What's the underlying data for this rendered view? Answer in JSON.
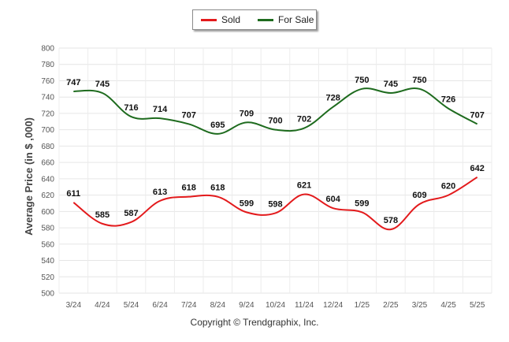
{
  "legend": {
    "sold_label": "Sold",
    "for_sale_label": "For Sale"
  },
  "footer": {
    "copyright": "Copyright © Trendgraphix, Inc."
  },
  "colors": {
    "sold": "#e31a1c",
    "for_sale": "#1e6b1e",
    "grid": "#e6e6e6"
  },
  "chart_data": {
    "type": "line",
    "ylabel": "Average Price (in $ ,000)",
    "ylim": [
      500,
      800
    ],
    "yticks": [
      500,
      520,
      540,
      560,
      580,
      600,
      620,
      640,
      660,
      680,
      700,
      720,
      740,
      760,
      780,
      800
    ],
    "categories": [
      "3/24",
      "4/24",
      "5/24",
      "6/24",
      "7/24",
      "8/24",
      "9/24",
      "10/24",
      "11/24",
      "12/24",
      "1/25",
      "2/25",
      "3/25",
      "4/25",
      "5/25"
    ],
    "grid": true,
    "legend_position": "top-center",
    "series": [
      {
        "name": "Sold",
        "color": "#e31a1c",
        "values": [
          611,
          585,
          587,
          613,
          618,
          618,
          599,
          598,
          621,
          604,
          599,
          578,
          609,
          620,
          642
        ]
      },
      {
        "name": "For Sale",
        "color": "#1e6b1e",
        "values": [
          747,
          745,
          716,
          714,
          707,
          695,
          709,
          700,
          702,
          728,
          750,
          745,
          750,
          726,
          707
        ]
      }
    ]
  }
}
